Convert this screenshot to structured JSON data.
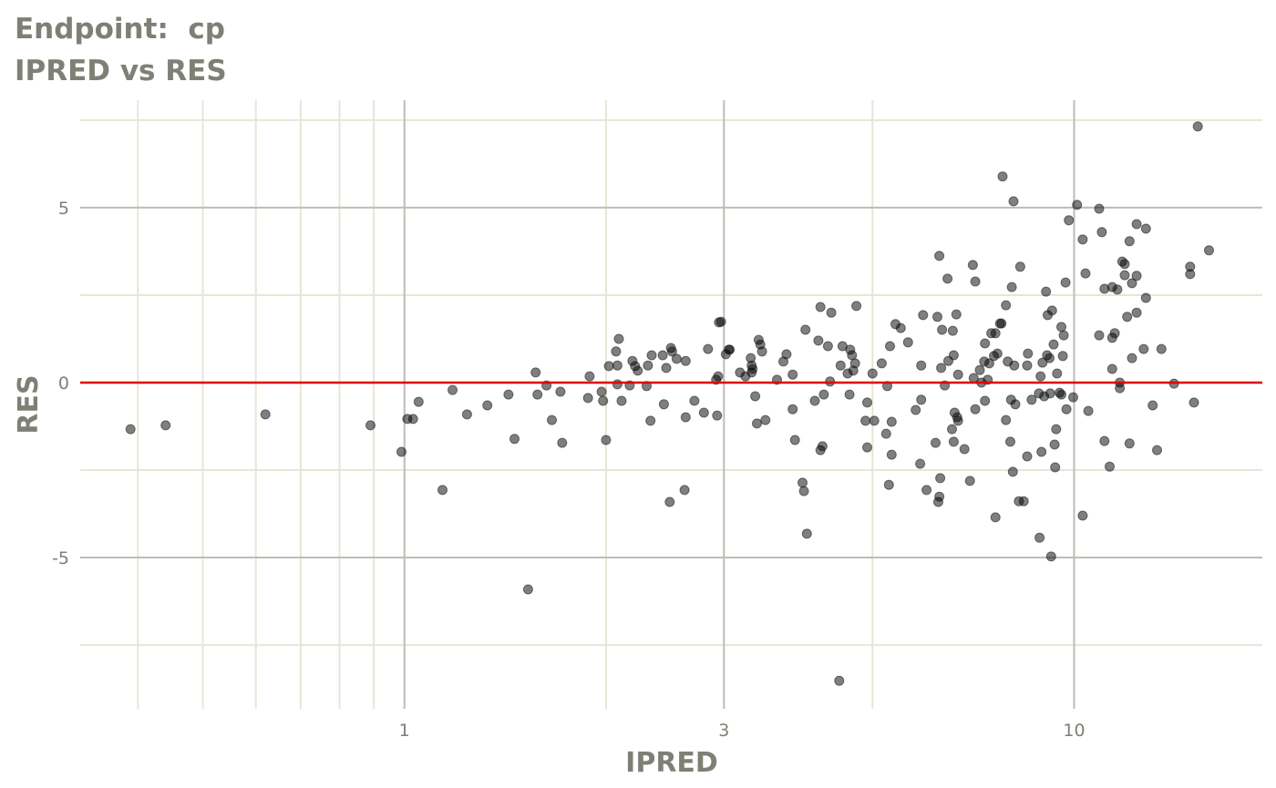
{
  "chart_data": {
    "type": "scatter",
    "title": "Endpoint:  cp",
    "subtitle": "IPRED vs RES",
    "xlabel": "IPRED",
    "ylabel": "RES",
    "x_scale": "log10",
    "xlim": [
      0.328,
      19.1
    ],
    "ylim": [
      -9.32,
      8.07
    ],
    "x_ticks": [
      {
        "value": 1,
        "label": "1"
      },
      {
        "value": 3,
        "label": "3"
      },
      {
        "value": 10,
        "label": "10"
      }
    ],
    "y_ticks": [
      {
        "value": 5,
        "label": "5"
      },
      {
        "value": 0,
        "label": "0"
      },
      {
        "value": -5,
        "label": "-5"
      }
    ],
    "x_minor_grid": [
      0.4,
      0.5,
      0.6,
      0.7,
      0.8,
      0.9,
      2,
      5
    ],
    "y_minor_grid": [
      -7.5,
      -2.5,
      2.5,
      7.5
    ],
    "grid": true,
    "reference_line": {
      "y": 0,
      "color": "#e00000"
    },
    "point_color": "#000000",
    "point_opacity": 0.5,
    "colors": {
      "major_grid": "#bdbdb5",
      "minor_grid": "#e6e6d8",
      "text": "#7f7f75"
    },
    "points": [
      [
        0.39,
        -1.33
      ],
      [
        0.44,
        -1.22
      ],
      [
        0.62,
        -0.91
      ],
      [
        0.89,
        -1.22
      ],
      [
        0.99,
        -1.98
      ],
      [
        1.01,
        -1.04
      ],
      [
        1.03,
        -1.04
      ],
      [
        1.05,
        -0.55
      ],
      [
        1.14,
        -3.07
      ],
      [
        1.18,
        -0.21
      ],
      [
        1.24,
        -0.91
      ],
      [
        1.33,
        -0.65
      ],
      [
        1.43,
        -0.34
      ],
      [
        1.46,
        -1.61
      ],
      [
        1.53,
        -5.91
      ],
      [
        1.57,
        0.29
      ],
      [
        1.58,
        -0.34
      ],
      [
        1.63,
        -0.08
      ],
      [
        1.66,
        -1.07
      ],
      [
        1.71,
        -0.26
      ],
      [
        1.72,
        -1.72
      ],
      [
        1.88,
        -0.44
      ],
      [
        1.89,
        0.18
      ],
      [
        1.97,
        -0.26
      ],
      [
        1.98,
        -0.52
      ],
      [
        2.0,
        -1.64
      ],
      [
        2.02,
        0.47
      ],
      [
        2.07,
        0.89
      ],
      [
        2.08,
        -0.05
      ],
      [
        2.08,
        0.49
      ],
      [
        2.09,
        1.25
      ],
      [
        2.11,
        -0.52
      ],
      [
        2.17,
        -0.08
      ],
      [
        2.19,
        0.62
      ],
      [
        2.21,
        0.47
      ],
      [
        2.23,
        0.34
      ],
      [
        2.3,
        -0.1
      ],
      [
        2.31,
        0.49
      ],
      [
        2.33,
        -1.09
      ],
      [
        2.34,
        0.78
      ],
      [
        2.43,
        0.78
      ],
      [
        2.44,
        -0.62
      ],
      [
        2.46,
        0.42
      ],
      [
        2.49,
        -3.41
      ],
      [
        2.5,
        0.99
      ],
      [
        2.51,
        0.89
      ],
      [
        2.55,
        0.68
      ],
      [
        2.62,
        -3.07
      ],
      [
        2.63,
        0.62
      ],
      [
        2.63,
        -0.99
      ],
      [
        2.71,
        -0.52
      ],
      [
        2.8,
        -0.86
      ],
      [
        2.84,
        0.96
      ],
      [
        2.92,
        0.08
      ],
      [
        2.93,
        -0.94
      ],
      [
        2.94,
        0.18
      ],
      [
        2.95,
        1.72
      ],
      [
        2.97,
        1.74
      ],
      [
        3.02,
        0.81
      ],
      [
        3.05,
        0.94
      ],
      [
        3.06,
        0.94
      ],
      [
        3.17,
        0.29
      ],
      [
        3.23,
        0.18
      ],
      [
        3.29,
        0.7
      ],
      [
        3.3,
        0.49
      ],
      [
        3.3,
        0.29
      ],
      [
        3.31,
        0.39
      ],
      [
        3.34,
        -0.39
      ],
      [
        3.36,
        -1.17
      ],
      [
        3.38,
        1.22
      ],
      [
        3.4,
        1.09
      ],
      [
        3.42,
        0.89
      ],
      [
        3.46,
        -1.07
      ],
      [
        3.6,
        0.08
      ],
      [
        3.68,
        0.6
      ],
      [
        3.72,
        0.81
      ],
      [
        3.8,
        0.23
      ],
      [
        3.8,
        -0.76
      ],
      [
        3.83,
        -1.64
      ],
      [
        3.93,
        -2.86
      ],
      [
        3.95,
        -3.1
      ],
      [
        3.97,
        1.51
      ],
      [
        3.99,
        -4.32
      ],
      [
        4.1,
        -0.52
      ],
      [
        4.15,
        1.2
      ],
      [
        4.18,
        2.16
      ],
      [
        4.18,
        -1.93
      ],
      [
        4.21,
        -1.82
      ],
      [
        4.23,
        -0.34
      ],
      [
        4.29,
        1.04
      ],
      [
        4.32,
        0.03
      ],
      [
        4.34,
        2.0
      ],
      [
        4.46,
        -8.52
      ],
      [
        4.48,
        0.49
      ],
      [
        4.51,
        1.04
      ],
      [
        4.59,
        0.26
      ],
      [
        4.62,
        -0.34
      ],
      [
        4.63,
        0.94
      ],
      [
        4.66,
        0.78
      ],
      [
        4.68,
        0.34
      ],
      [
        4.71,
        0.55
      ],
      [
        4.73,
        2.19
      ],
      [
        4.88,
        -1.09
      ],
      [
        4.91,
        -0.57
      ],
      [
        4.91,
        -1.85
      ],
      [
        5.0,
        0.26
      ],
      [
        5.03,
        -1.09
      ],
      [
        5.16,
        0.55
      ],
      [
        5.24,
        -1.46
      ],
      [
        5.26,
        -0.1
      ],
      [
        5.29,
        -2.92
      ],
      [
        5.31,
        1.04
      ],
      [
        5.34,
        -2.06
      ],
      [
        5.34,
        -1.12
      ],
      [
        5.41,
        1.67
      ],
      [
        5.51,
        1.56
      ],
      [
        5.65,
        1.15
      ],
      [
        5.8,
        -0.78
      ],
      [
        5.89,
        -2.32
      ],
      [
        5.91,
        0.49
      ],
      [
        5.91,
        -0.49
      ],
      [
        5.95,
        1.93
      ],
      [
        6.02,
        -3.07
      ],
      [
        6.21,
        -1.72
      ],
      [
        6.25,
        1.88
      ],
      [
        6.27,
        -3.41
      ],
      [
        6.29,
        -3.26
      ],
      [
        6.29,
        3.62
      ],
      [
        6.31,
        -2.73
      ],
      [
        6.33,
        0.42
      ],
      [
        6.35,
        1.51
      ],
      [
        6.41,
        -0.08
      ],
      [
        6.47,
        2.97
      ],
      [
        6.49,
        0.62
      ],
      [
        6.57,
        -1.33
      ],
      [
        6.59,
        1.48
      ],
      [
        6.61,
        0.78
      ],
      [
        6.61,
        -1.69
      ],
      [
        6.63,
        -0.86
      ],
      [
        6.67,
        1.95
      ],
      [
        6.69,
        -0.99
      ],
      [
        6.71,
        -1.09
      ],
      [
        6.71,
        0.23
      ],
      [
        6.86,
        -1.9
      ],
      [
        6.99,
        -2.81
      ],
      [
        7.06,
        3.36
      ],
      [
        7.08,
        0.13
      ],
      [
        7.12,
        2.89
      ],
      [
        7.12,
        -0.76
      ],
      [
        7.23,
        0.36
      ],
      [
        7.27,
        0.0
      ],
      [
        7.34,
        0.6
      ],
      [
        7.36,
        1.12
      ],
      [
        7.36,
        -0.52
      ],
      [
        7.43,
        0.08
      ],
      [
        7.47,
        0.55
      ],
      [
        7.52,
        1.41
      ],
      [
        7.59,
        0.76
      ],
      [
        7.63,
        -3.85
      ],
      [
        7.63,
        1.41
      ],
      [
        7.68,
        0.83
      ],
      [
        7.75,
        1.69
      ],
      [
        7.79,
        1.69
      ],
      [
        7.82,
        5.89
      ],
      [
        7.91,
        -1.07
      ],
      [
        7.91,
        2.21
      ],
      [
        7.96,
        0.6
      ],
      [
        8.03,
        -1.69
      ],
      [
        8.05,
        -0.49
      ],
      [
        8.07,
        2.73
      ],
      [
        8.1,
        -2.55
      ],
      [
        8.12,
        5.18
      ],
      [
        8.14,
        0.49
      ],
      [
        8.17,
        -0.62
      ],
      [
        8.27,
        -3.39
      ],
      [
        8.31,
        3.31
      ],
      [
        8.41,
        -3.39
      ],
      [
        8.51,
        0.49
      ],
      [
        8.53,
        0.83
      ],
      [
        8.51,
        -2.11
      ],
      [
        8.64,
        -0.49
      ],
      [
        8.86,
        -0.31
      ],
      [
        8.88,
        -4.43
      ],
      [
        8.91,
        0.18
      ],
      [
        8.94,
        -1.98
      ],
      [
        8.97,
        0.57
      ],
      [
        9.02,
        -0.39
      ],
      [
        9.08,
        2.6
      ],
      [
        9.11,
        0.78
      ],
      [
        9.13,
        1.93
      ],
      [
        9.19,
        0.7
      ],
      [
        9.21,
        -0.31
      ],
      [
        9.24,
        -4.97
      ],
      [
        9.27,
        2.06
      ],
      [
        9.32,
        1.09
      ],
      [
        9.35,
        -1.77
      ],
      [
        9.37,
        -2.42
      ],
      [
        9.4,
        -1.33
      ],
      [
        9.43,
        0.26
      ],
      [
        9.51,
        -0.29
      ],
      [
        9.57,
        -0.34
      ],
      [
        9.57,
        1.59
      ],
      [
        9.62,
        0.76
      ],
      [
        9.65,
        1.35
      ],
      [
        9.71,
        2.86
      ],
      [
        9.74,
        -0.76
      ],
      [
        9.82,
        4.64
      ],
      [
        9.97,
        -0.42
      ],
      [
        10.1,
        5.08
      ],
      [
        10.3,
        4.09
      ],
      [
        10.3,
        -3.8
      ],
      [
        10.4,
        3.12
      ],
      [
        10.5,
        -0.81
      ],
      [
        10.9,
        4.97
      ],
      [
        10.9,
        1.35
      ],
      [
        11.0,
        4.3
      ],
      [
        11.1,
        -1.67
      ],
      [
        11.1,
        2.68
      ],
      [
        11.3,
        -2.4
      ],
      [
        11.4,
        0.39
      ],
      [
        11.4,
        1.28
      ],
      [
        11.4,
        2.73
      ],
      [
        11.5,
        1.41
      ],
      [
        11.6,
        2.66
      ],
      [
        11.7,
        0.0
      ],
      [
        11.7,
        -0.16
      ],
      [
        11.8,
        3.46
      ],
      [
        11.9,
        3.07
      ],
      [
        11.9,
        3.39
      ],
      [
        12.0,
        1.88
      ],
      [
        12.1,
        4.04
      ],
      [
        12.1,
        -1.74
      ],
      [
        12.2,
        2.84
      ],
      [
        12.2,
        0.7
      ],
      [
        12.4,
        2.0
      ],
      [
        12.4,
        3.05
      ],
      [
        12.4,
        4.53
      ],
      [
        12.7,
        0.96
      ],
      [
        12.8,
        2.42
      ],
      [
        12.8,
        4.4
      ],
      [
        13.1,
        -0.65
      ],
      [
        13.3,
        -1.93
      ],
      [
        13.5,
        0.96
      ],
      [
        14.1,
        -0.03
      ],
      [
        14.9,
        3.1
      ],
      [
        14.9,
        3.31
      ],
      [
        15.1,
        -0.57
      ],
      [
        15.3,
        7.32
      ],
      [
        15.9,
        3.78
      ]
    ]
  }
}
